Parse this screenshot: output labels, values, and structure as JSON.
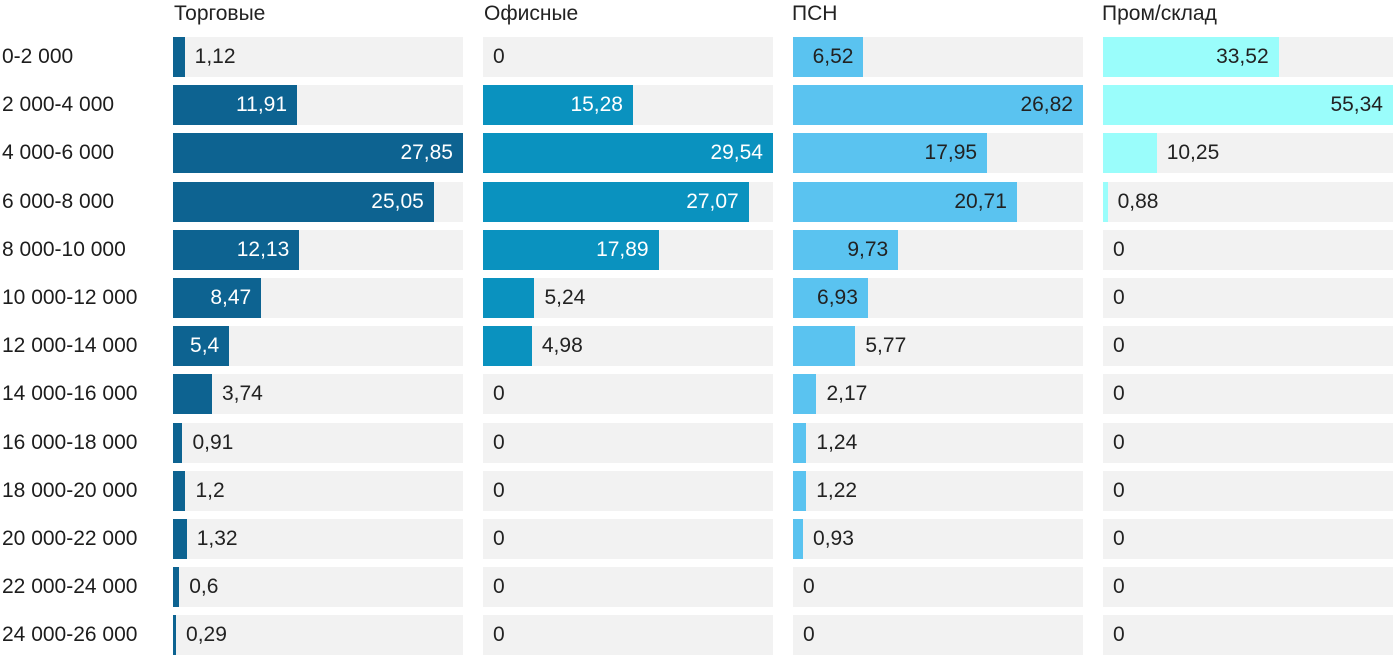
{
  "chart_data": {
    "type": "bar",
    "orientation": "horizontal",
    "title": "",
    "categories": [
      "0-2 000",
      "2 000-4 000",
      "4 000-6 000",
      "6 000-8 000",
      "8 000-10 000",
      "10 000-12 000",
      "12 000-14 000",
      "14 000-16 000",
      "16 000-18 000",
      "18 000-20 000",
      "20 000-22 000",
      "22 000-24 000",
      "24 000-26 000"
    ],
    "series": [
      {
        "name": "Торговые",
        "color": "#0d6391",
        "inside_label_color": "#ffffff",
        "values": [
          1.12,
          11.91,
          27.85,
          25.05,
          12.13,
          8.47,
          5.4,
          3.74,
          0.91,
          1.2,
          1.32,
          0.6,
          0.29
        ]
      },
      {
        "name": "Офисные",
        "color": "#0a92bf",
        "inside_label_color": "#ffffff",
        "values": [
          0,
          15.28,
          29.54,
          27.07,
          17.89,
          5.24,
          4.98,
          0,
          0,
          0,
          0,
          0,
          0
        ]
      },
      {
        "name": "ПСН",
        "color": "#5ac3f0",
        "inside_label_color": "#222222",
        "values": [
          6.52,
          26.82,
          17.95,
          20.71,
          9.73,
          6.93,
          5.77,
          2.17,
          1.24,
          1.22,
          0.93,
          0,
          0
        ]
      },
      {
        "name": "Пром/склад",
        "color": "#9afdfb",
        "inside_label_color": "#222222",
        "values": [
          33.52,
          55.34,
          10.25,
          0.88,
          0,
          0,
          0,
          0,
          0,
          0,
          0,
          0,
          0
        ]
      }
    ],
    "per_series_max": [
      27.85,
      29.54,
      26.82,
      55.34
    ],
    "scaling_note": "each column bar length is scaled to that column's own maximum value",
    "decimal_separator": ",",
    "zero_label": "0",
    "track_color": "#f2f2f2",
    "outside_label_color": "#222222",
    "row_label_color": "#1d1d1d",
    "legend": "none",
    "grid": "off"
  }
}
